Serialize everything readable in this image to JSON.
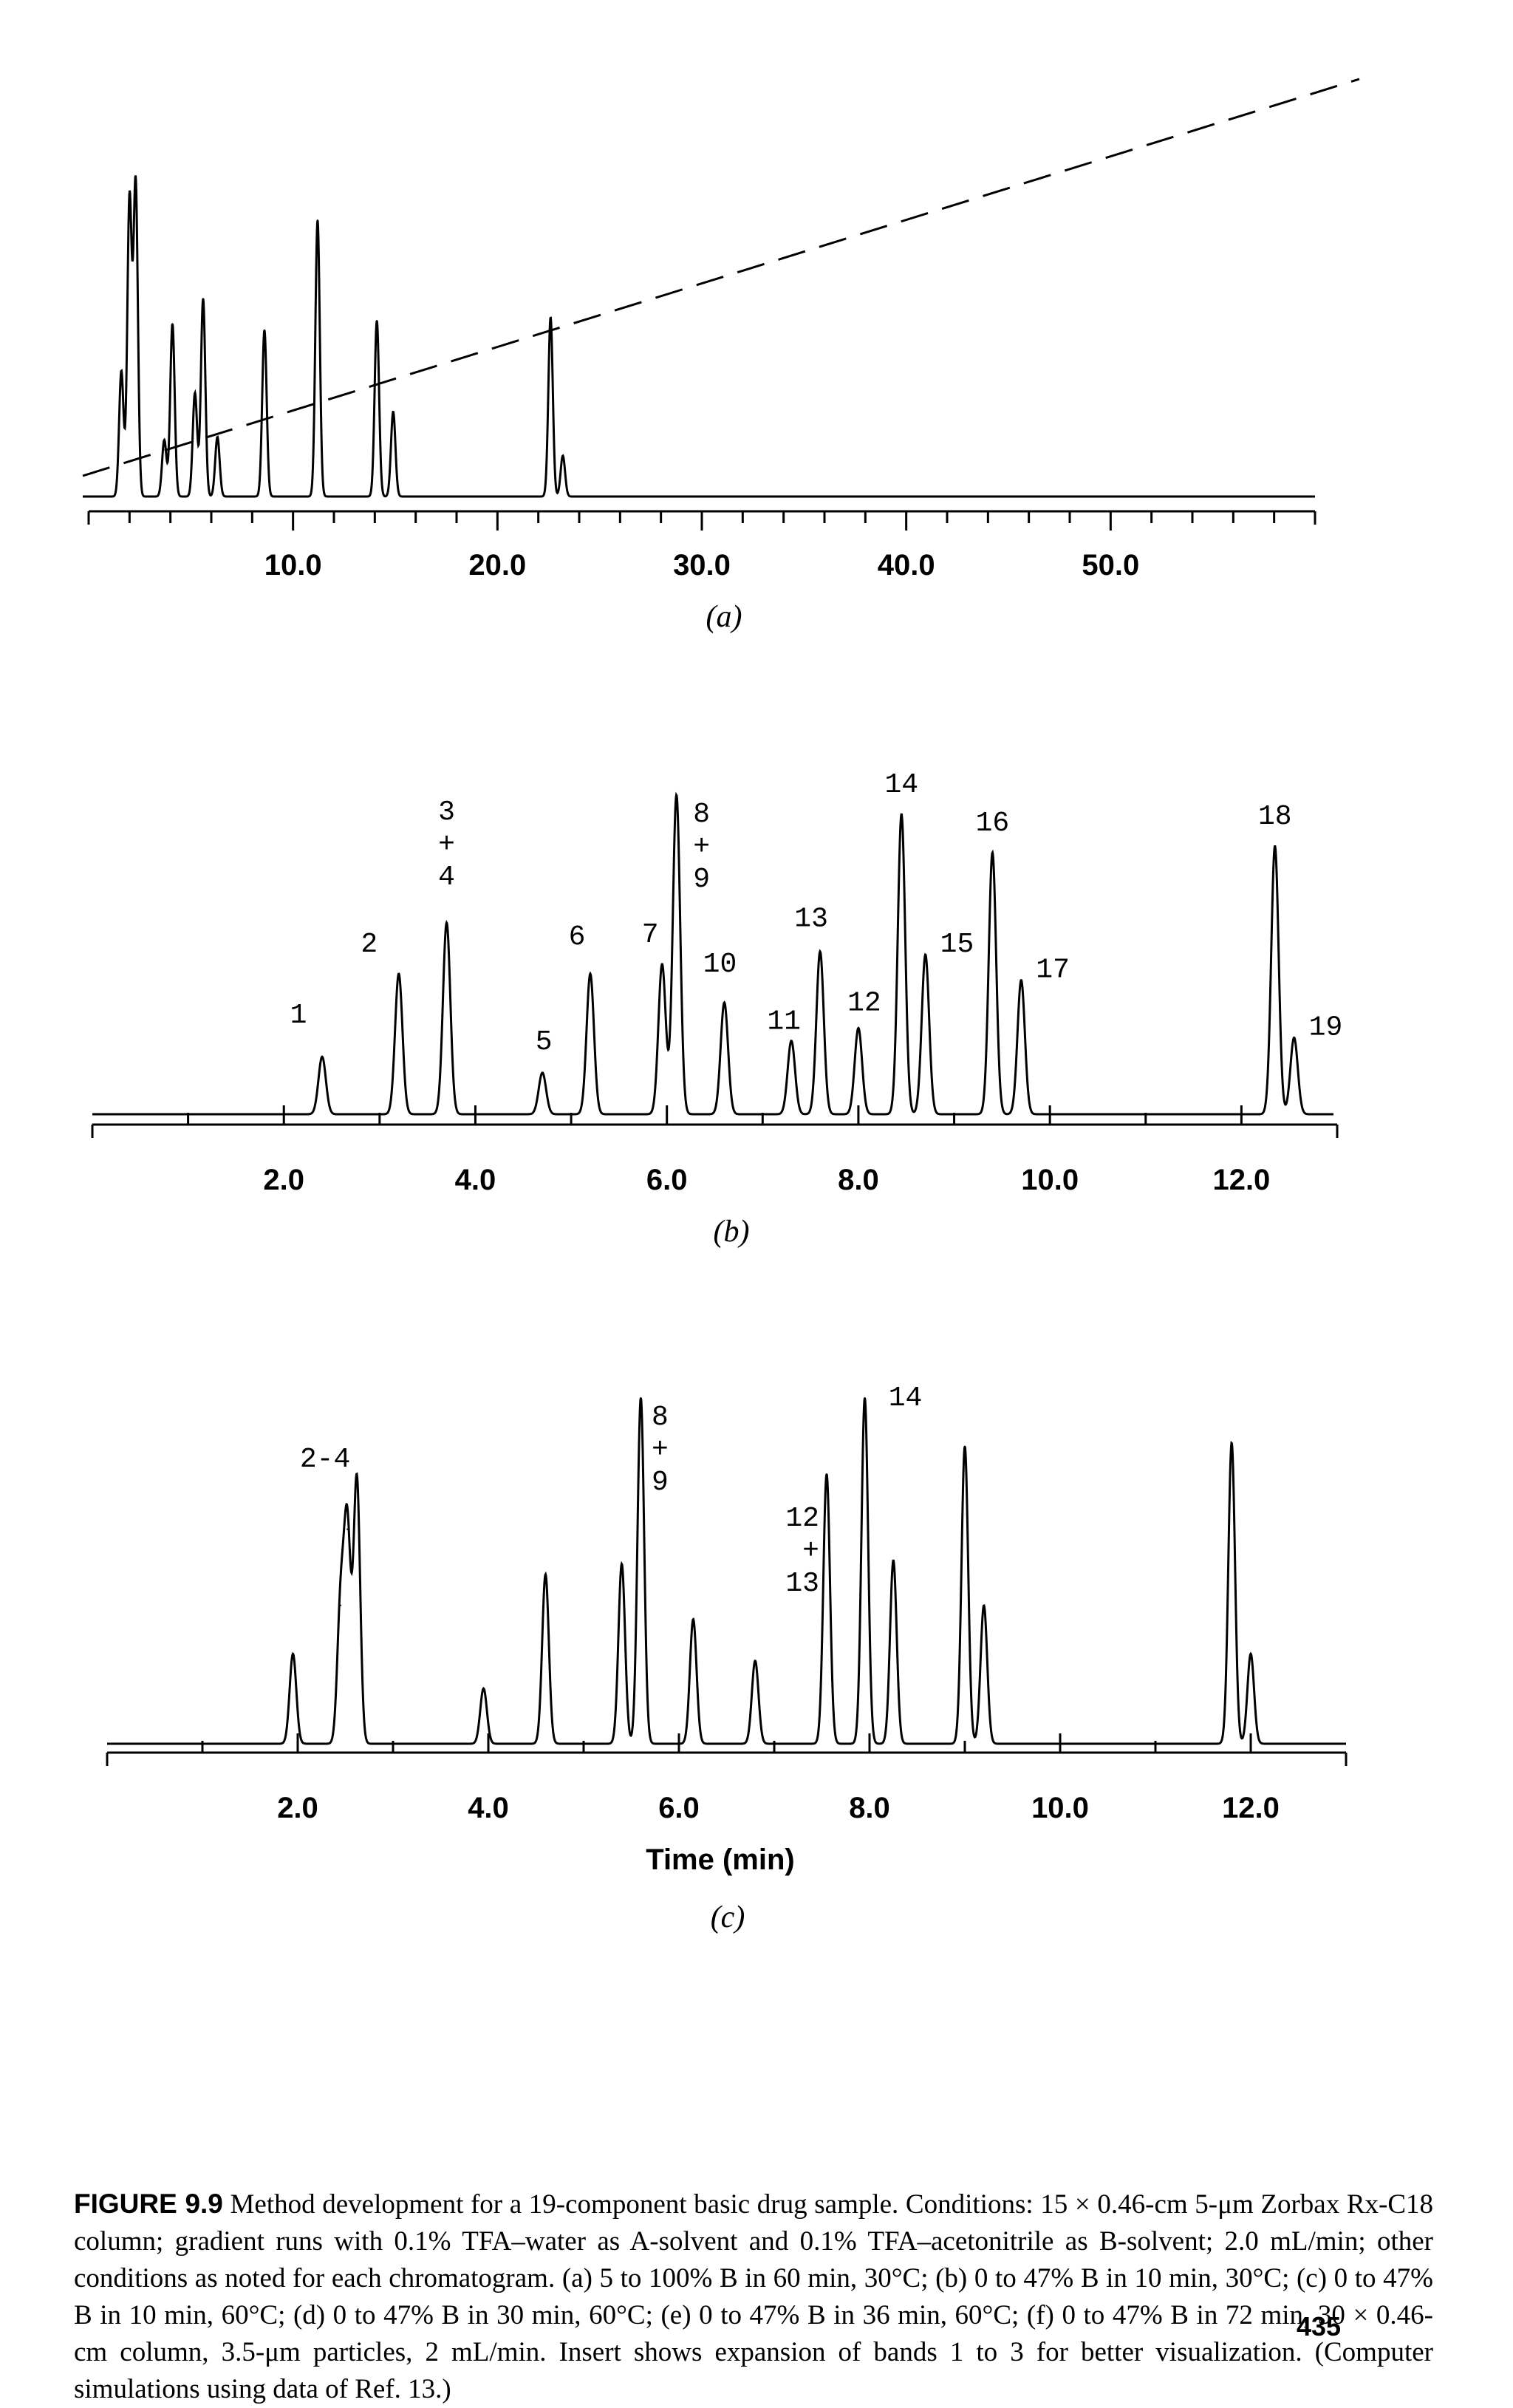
{
  "chart_data": [
    {
      "type": "line",
      "panel_label": "(a)",
      "xlim": [
        0,
        60
      ],
      "x_ticks": [
        "10.0",
        "20.0",
        "30.0",
        "40.0",
        "50.0"
      ],
      "x_tick_values": [
        10,
        20,
        30,
        40,
        50
      ],
      "xlabel": "",
      "peaks": [
        {
          "t": 1.6,
          "h": 0.4
        },
        {
          "t": 2.0,
          "h": 0.95
        },
        {
          "t": 2.3,
          "h": 1.0
        },
        {
          "t": 3.7,
          "h": 0.18
        },
        {
          "t": 4.1,
          "h": 0.55
        },
        {
          "t": 5.2,
          "h": 0.33
        },
        {
          "t": 5.6,
          "h": 0.63
        },
        {
          "t": 6.3,
          "h": 0.19
        },
        {
          "t": 8.6,
          "h": 0.53
        },
        {
          "t": 11.2,
          "h": 0.88
        },
        {
          "t": 14.1,
          "h": 0.56
        },
        {
          "t": 14.9,
          "h": 0.27
        },
        {
          "t": 22.6,
          "h": 0.57
        },
        {
          "t": 23.2,
          "h": 0.13
        }
      ],
      "gradient": {
        "style": "dashed",
        "percent_b_start": 5,
        "percent_b_end": 100,
        "time_end_min": 60
      }
    },
    {
      "type": "line",
      "panel_label": "(b)",
      "xlim": [
        0,
        13
      ],
      "x_ticks": [
        "2.0",
        "4.0",
        "6.0",
        "8.0",
        "10.0",
        "12.0"
      ],
      "x_tick_values": [
        2,
        4,
        6,
        8,
        10,
        12
      ],
      "xlabel": "",
      "peaks": [
        {
          "t": 2.4,
          "h": 0.18,
          "label": "1"
        },
        {
          "t": 3.2,
          "h": 0.44,
          "label": "2"
        },
        {
          "t": 3.7,
          "h": 0.6,
          "label": "3\n+\n4"
        },
        {
          "t": 4.7,
          "h": 0.13,
          "label": "5"
        },
        {
          "t": 5.2,
          "h": 0.44,
          "label": "6"
        },
        {
          "t": 5.95,
          "h": 0.47,
          "label": "7"
        },
        {
          "t": 6.1,
          "h": 1.0,
          "label": "8\n+\n9"
        },
        {
          "t": 6.6,
          "h": 0.35,
          "label": "10"
        },
        {
          "t": 7.3,
          "h": 0.23,
          "label": "11"
        },
        {
          "t": 7.6,
          "h": 0.51,
          "label": "13"
        },
        {
          "t": 8.0,
          "h": 0.27,
          "label": "12"
        },
        {
          "t": 8.45,
          "h": 0.94,
          "label": "14"
        },
        {
          "t": 8.7,
          "h": 0.5,
          "label": "15"
        },
        {
          "t": 9.4,
          "h": 0.82,
          "label": "16"
        },
        {
          "t": 9.7,
          "h": 0.42,
          "label": "17"
        },
        {
          "t": 12.35,
          "h": 0.84,
          "label": "18"
        },
        {
          "t": 12.55,
          "h": 0.24,
          "label": "19"
        }
      ]
    },
    {
      "type": "line",
      "panel_label": "(c)",
      "xlim": [
        0,
        13
      ],
      "x_ticks": [
        "2.0",
        "4.0",
        "6.0",
        "8.0",
        "10.0",
        "12.0"
      ],
      "x_tick_values": [
        2,
        4,
        6,
        8,
        10,
        12
      ],
      "xlabel": "Time (min)",
      "peaks": [
        {
          "t": 1.95,
          "h": 0.26
        },
        {
          "t": 2.45,
          "h": 0.4
        },
        {
          "t": 2.52,
          "h": 0.62,
          "label": "2-4"
        },
        {
          "t": 2.62,
          "h": 0.77
        },
        {
          "t": 3.95,
          "h": 0.16
        },
        {
          "t": 4.6,
          "h": 0.49
        },
        {
          "t": 5.4,
          "h": 0.52
        },
        {
          "t": 5.6,
          "h": 1.0,
          "label": "8\n+\n9"
        },
        {
          "t": 6.15,
          "h": 0.36
        },
        {
          "t": 6.8,
          "h": 0.24
        },
        {
          "t": 7.55,
          "h": 0.78,
          "label": "12\n+\n13"
        },
        {
          "t": 7.95,
          "h": 1.0,
          "label": "14"
        },
        {
          "t": 8.25,
          "h": 0.53
        },
        {
          "t": 9.0,
          "h": 0.86
        },
        {
          "t": 9.2,
          "h": 0.4
        },
        {
          "t": 11.8,
          "h": 0.87
        },
        {
          "t": 12.0,
          "h": 0.26
        }
      ]
    }
  ],
  "caption": {
    "figure_number": "FIGURE 9.9",
    "text": "Method development for a 19-component basic drug sample. Conditions: 15 × 0.46-cm 5-μm Zorbax Rx-C18 column; gradient runs with 0.1% TFA–water as A-solvent and 0.1% TFA–acetonitrile as B-solvent; 2.0 mL/min; other conditions as noted for each chromatogram. (a) 5 to 100% B in 60 min, 30°C; (b) 0 to 47% B in 10 min, 30°C; (c) 0 to 47% B in 10 min, 60°C; (d) 0 to 47% B in 30 min, 60°C; (e) 0 to 47% B in 36 min, 60°C; (f) 0 to 47% B in 72 min, 30 × 0.46-cm column, 3.5-μm particles, 2 mL/min. Insert shows expansion of bands 1 to 3 for better visualization. (Computer simulations using data of Ref. 13.)"
  },
  "page_number": "435"
}
